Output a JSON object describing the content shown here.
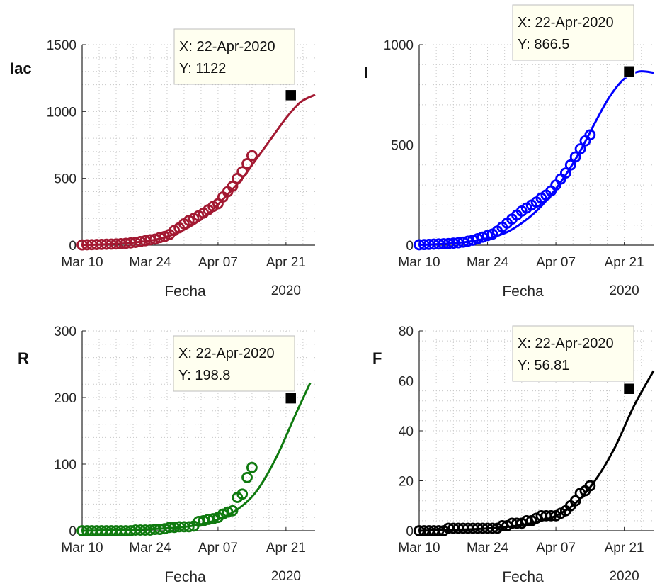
{
  "chart_data": [
    {
      "type": "line",
      "ylabel": "Iac",
      "xlabel": "Fecha",
      "xtick_labels": [
        "Mar 10",
        "Mar 24",
        "Apr 07",
        "Apr 21"
      ],
      "year_label": "2020",
      "ylim": [
        0,
        1500
      ],
      "yticks": [
        0,
        500,
        1000,
        1500
      ],
      "color": "#a31932",
      "grid": true,
      "observed_days": [
        0,
        1,
        2,
        3,
        4,
        5,
        6,
        7,
        8,
        9,
        10,
        11,
        12,
        13,
        14,
        15,
        16,
        17,
        18,
        19,
        20,
        21,
        22,
        23,
        24,
        25,
        26,
        27,
        28,
        29,
        30,
        31,
        32,
        33,
        34,
        35
      ],
      "observed": [
        2,
        3,
        4,
        5,
        6,
        7,
        8,
        9,
        11,
        14,
        17,
        21,
        27,
        33,
        40,
        45,
        57,
        65,
        80,
        110,
        130,
        160,
        185,
        200,
        220,
        240,
        265,
        290,
        310,
        360,
        400,
        440,
        500,
        550,
        610,
        670
      ],
      "fit_days": [
        0,
        3,
        6,
        9,
        12,
        15,
        18,
        21,
        24,
        27,
        30,
        33,
        36,
        39,
        42,
        45,
        48
      ],
      "fit": [
        2,
        4,
        8,
        14,
        25,
        40,
        70,
        115,
        180,
        270,
        380,
        500,
        650,
        800,
        950,
        1070,
        1125
      ],
      "tooltip": {
        "x_label": "X: 22-Apr-2020",
        "y_label": "Y: 1122",
        "day": 43,
        "value": 1122
      }
    },
    {
      "type": "line",
      "ylabel": "I",
      "xlabel": "Fecha",
      "xtick_labels": [
        "Mar 10",
        "Mar 24",
        "Apr 07",
        "Apr 21"
      ],
      "year_label": "2020",
      "ylim": [
        0,
        1000
      ],
      "yticks": [
        0,
        500,
        1000
      ],
      "color": "#0000ff",
      "grid": true,
      "observed_days": [
        0,
        1,
        2,
        3,
        4,
        5,
        6,
        7,
        8,
        9,
        10,
        11,
        12,
        13,
        14,
        15,
        16,
        17,
        18,
        19,
        20,
        21,
        22,
        23,
        24,
        25,
        26,
        27,
        28,
        29,
        30,
        31,
        32,
        33,
        34,
        35
      ],
      "observed": [
        2,
        3,
        4,
        5,
        6,
        7,
        8,
        10,
        12,
        15,
        20,
        25,
        32,
        40,
        48,
        55,
        70,
        90,
        110,
        130,
        150,
        170,
        185,
        200,
        215,
        235,
        250,
        270,
        300,
        330,
        360,
        400,
        440,
        480,
        520,
        550
      ],
      "fit_days": [
        0,
        3,
        6,
        9,
        12,
        15,
        18,
        21,
        24,
        27,
        30,
        33,
        36,
        39,
        42,
        45,
        48
      ],
      "fit": [
        2,
        4,
        8,
        14,
        25,
        40,
        65,
        110,
        170,
        250,
        350,
        470,
        610,
        740,
        830,
        866,
        860
      ],
      "tooltip": {
        "x_label": "X: 22-Apr-2020",
        "y_label": "Y: 866.5",
        "day": 43,
        "value": 866.5
      }
    },
    {
      "type": "line",
      "ylabel": "R",
      "xlabel": "Fecha",
      "xtick_labels": [
        "Mar 10",
        "Mar 24",
        "Apr 07",
        "Apr 21"
      ],
      "year_label": "2020",
      "ylim": [
        0,
        300
      ],
      "yticks": [
        0,
        100,
        200,
        300
      ],
      "color": "#0f7a0f",
      "grid": true,
      "observed_days": [
        0,
        1,
        2,
        3,
        4,
        5,
        6,
        7,
        8,
        9,
        10,
        11,
        12,
        13,
        14,
        15,
        16,
        17,
        18,
        19,
        20,
        21,
        22,
        23,
        24,
        25,
        26,
        27,
        28,
        29,
        30,
        31,
        32,
        33,
        34,
        35
      ],
      "observed": [
        0,
        0,
        0,
        0,
        0,
        0,
        0,
        0,
        0,
        0,
        0,
        1,
        1,
        1,
        1,
        2,
        2,
        3,
        5,
        5,
        6,
        6,
        6,
        7,
        14,
        15,
        17,
        18,
        20,
        25,
        28,
        30,
        50,
        55,
        80,
        95
      ],
      "fit_days": [
        0,
        4,
        8,
        12,
        16,
        20,
        24,
        28,
        32,
        36,
        40,
        44,
        47
      ],
      "fit": [
        0,
        0.5,
        1,
        2,
        3,
        5,
        9,
        17,
        32,
        60,
        110,
        175,
        222
      ],
      "tooltip": {
        "x_label": "X: 22-Apr-2020",
        "y_label": "Y: 198.8",
        "day": 43,
        "value": 198.8
      }
    },
    {
      "type": "line",
      "ylabel": "F",
      "xlabel": "Fecha",
      "xtick_labels": [
        "Mar 10",
        "Mar 24",
        "Apr 07",
        "Apr 21"
      ],
      "year_label": "2020",
      "ylim": [
        0,
        80
      ],
      "yticks": [
        0,
        20,
        40,
        60,
        80
      ],
      "color": "#000000",
      "grid": true,
      "observed_days": [
        0,
        1,
        2,
        3,
        4,
        5,
        6,
        7,
        8,
        9,
        10,
        11,
        12,
        13,
        14,
        15,
        16,
        17,
        18,
        19,
        20,
        21,
        22,
        23,
        24,
        25,
        26,
        27,
        28,
        29,
        30,
        31,
        32,
        33,
        34,
        35
      ],
      "observed": [
        0,
        0,
        0,
        0,
        0,
        0,
        1,
        1,
        1,
        1,
        1,
        1,
        1,
        1,
        1,
        1,
        1,
        2,
        2,
        3,
        3,
        3,
        4,
        4,
        5,
        6,
        6,
        6,
        6,
        7,
        8,
        10,
        12,
        15,
        16,
        18
      ],
      "fit_days": [
        0,
        4,
        8,
        12,
        16,
        20,
        24,
        28,
        32,
        36,
        40,
        44,
        48
      ],
      "fit": [
        0,
        0.2,
        0.4,
        0.7,
        1.2,
        2,
        3.5,
        6,
        11,
        20,
        33,
        50,
        64
      ],
      "tooltip": {
        "x_label": "X: 22-Apr-2020",
        "y_label": "Y: 56.81",
        "day": 43,
        "value": 56.81
      }
    }
  ],
  "colors": {
    "tooltip_bg": "#fffff0",
    "grid": "#c8c8c8",
    "axis": "#262626"
  }
}
